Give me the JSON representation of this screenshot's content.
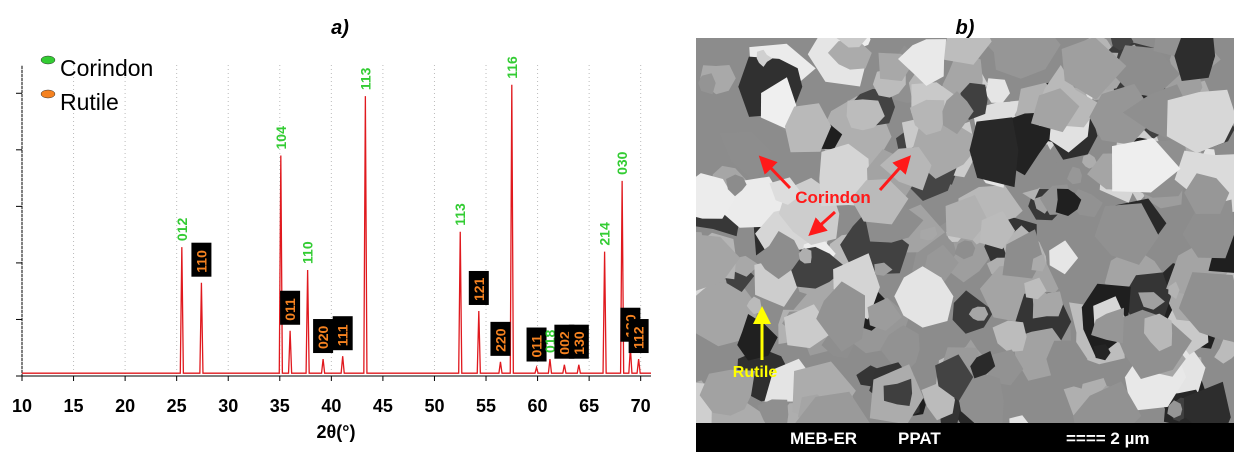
{
  "chart_data": {
    "type": "line",
    "title": "a)",
    "x_label": "2θ(°)",
    "color": "#e0191e",
    "x": [
      10,
      25.35,
      25.5,
      25.65,
      27.25,
      27.4,
      27.55,
      34.95,
      35.1,
      35.25,
      35.85,
      36.0,
      36.15,
      37.55,
      37.7,
      37.85,
      39.05,
      39.2,
      39.35,
      40.95,
      41.1,
      41.25,
      43.15,
      43.3,
      43.45,
      52.35,
      52.5,
      52.65,
      54.15,
      54.3,
      54.45,
      56.25,
      56.4,
      56.55,
      57.35,
      57.5,
      57.65,
      59.75,
      59.9,
      60.05,
      61.05,
      61.2,
      61.35,
      62.45,
      62.6,
      62.75,
      63.85,
      64.0,
      64.15,
      66.35,
      66.5,
      66.65,
      68.05,
      68.2,
      68.35,
      68.85,
      69.0,
      69.15,
      69.65,
      69.8,
      69.95,
      71
    ],
    "values": [
      1,
      1,
      45.6,
      1,
      1,
      33,
      1,
      1,
      78,
      1,
      1,
      16,
      1,
      1,
      37.5,
      1,
      1,
      6,
      1,
      1,
      7,
      1,
      1,
      99,
      1,
      1,
      51,
      1,
      1,
      23,
      1,
      1,
      5,
      1,
      1,
      103,
      1,
      1,
      3,
      1,
      1,
      6,
      1,
      1,
      4,
      1,
      1,
      4,
      1,
      1,
      44,
      1,
      1,
      69,
      1,
      1,
      10,
      1,
      1,
      6,
      1,
      1
    ],
    "xlim": [
      10,
      71
    ],
    "xticks": [
      10,
      15,
      20,
      25,
      30,
      35,
      40,
      45,
      50,
      55,
      60,
      65,
      70
    ],
    "ylim": [
      0,
      110
    ],
    "yticks": [
      0,
      20,
      40,
      60,
      80,
      100
    ],
    "grid": true,
    "legend": [
      {
        "name": "Corindon",
        "color": "#33cc33"
      },
      {
        "name": "Rutile",
        "color": "#f58220"
      }
    ],
    "peak_labels": [
      {
        "text": "012",
        "phase": 0,
        "x": 25.5
      },
      {
        "text": "110",
        "phase": 1,
        "x": 27.4
      },
      {
        "text": "104",
        "phase": 0,
        "x": 35.1
      },
      {
        "text": "011",
        "phase": 1,
        "x": 36.0
      },
      {
        "text": "110",
        "phase": 0,
        "x": 37.7
      },
      {
        "text": "020",
        "phase": 1,
        "x": 39.2
      },
      {
        "text": "111",
        "phase": 1,
        "x": 41.1
      },
      {
        "text": "113",
        "phase": 0,
        "x": 43.3
      },
      {
        "text": "113",
        "phase": 0,
        "x": 52.5
      },
      {
        "text": "121",
        "phase": 1,
        "x": 54.3
      },
      {
        "text": "220",
        "phase": 1,
        "x": 56.4
      },
      {
        "text": "116",
        "phase": 0,
        "x": 57.5
      },
      {
        "text": "011",
        "phase": 1,
        "x": 59.9
      },
      {
        "text": "018",
        "phase": 0,
        "x": 61.2
      },
      {
        "text": "002",
        "phase": 1,
        "x": 62.6
      },
      {
        "text": "130",
        "phase": 1,
        "x": 64.0
      },
      {
        "text": "214",
        "phase": 0,
        "x": 66.5
      },
      {
        "text": "030",
        "phase": 0,
        "x": 68.2
      },
      {
        "text": "130",
        "phase": 1,
        "x": 69.0
      },
      {
        "text": "112",
        "phase": 1,
        "x": 69.8
      }
    ]
  },
  "image_panel": {
    "title": "b)",
    "label_corindon": "Corindon",
    "label_rutile": "Rutile",
    "footer": [
      "MEB-ER",
      "PPAT",
      "==== 2 µm"
    ]
  }
}
